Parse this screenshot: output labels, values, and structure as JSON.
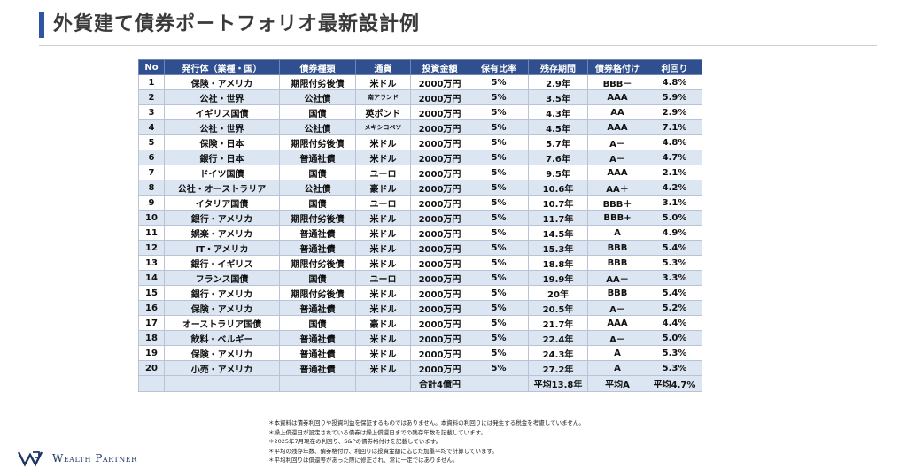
{
  "title": "外貨建て債券ポートフォリオ最新設計例",
  "table": {
    "headers": [
      "No",
      "発行体（業種・国）",
      "債券種類",
      "通貨",
      "投資金額",
      "保有比率",
      "残存期間",
      "債券格付け",
      "利回り"
    ],
    "rows": [
      [
        "1",
        "保険・アメリカ",
        "期限付劣後債",
        "米ドル",
        "2000万円",
        "5%",
        "2.9年",
        "BBB－",
        "4.8%"
      ],
      [
        "2",
        "公社・世界",
        "公社債",
        "南アランド",
        "2000万円",
        "5%",
        "3.5年",
        "AAA",
        "5.9%"
      ],
      [
        "3",
        "イギリス国債",
        "国債",
        "英ポンド",
        "2000万円",
        "5%",
        "4.3年",
        "AA",
        "2.9%"
      ],
      [
        "4",
        "公社・世界",
        "公社債",
        "メキシコペソ",
        "2000万円",
        "5%",
        "4.5年",
        "AAA",
        "7.1%"
      ],
      [
        "5",
        "保険・日本",
        "期限付劣後債",
        "米ドル",
        "2000万円",
        "5%",
        "5.7年",
        "A－",
        "4.8%"
      ],
      [
        "6",
        "銀行・日本",
        "普通社債",
        "米ドル",
        "2000万円",
        "5%",
        "7.6年",
        "A－",
        "4.7%"
      ],
      [
        "7",
        "ドイツ国債",
        "国債",
        "ユーロ",
        "2000万円",
        "5%",
        "9.5年",
        "AAA",
        "2.1%"
      ],
      [
        "8",
        "公社・オーストラリア",
        "公社債",
        "豪ドル",
        "2000万円",
        "5%",
        "10.6年",
        "AA＋",
        "4.2%"
      ],
      [
        "9",
        "イタリア国債",
        "国債",
        "ユーロ",
        "2000万円",
        "5%",
        "10.7年",
        "BBB＋",
        "3.1%"
      ],
      [
        "10",
        "銀行・アメリカ",
        "期限付劣後債",
        "米ドル",
        "2000万円",
        "5%",
        "11.7年",
        "BBB+",
        "5.0%"
      ],
      [
        "11",
        "娯楽・アメリカ",
        "普通社債",
        "米ドル",
        "2000万円",
        "5%",
        "14.5年",
        "A",
        "4.9%"
      ],
      [
        "12",
        "IT・アメリカ",
        "普通社債",
        "米ドル",
        "2000万円",
        "5%",
        "15.3年",
        "BBB",
        "5.4%"
      ],
      [
        "13",
        "銀行・イギリス",
        "期限付劣後債",
        "米ドル",
        "2000万円",
        "5%",
        "18.8年",
        "BBB",
        "5.3%"
      ],
      [
        "14",
        "フランス国債",
        "国債",
        "ユーロ",
        "2000万円",
        "5%",
        "19.9年",
        "AA－",
        "3.3%"
      ],
      [
        "15",
        "銀行・アメリカ",
        "期限付劣後債",
        "米ドル",
        "2000万円",
        "5%",
        "20年",
        "BBB",
        "5.4%"
      ],
      [
        "16",
        "保険・アメリカ",
        "普通社債",
        "米ドル",
        "2000万円",
        "5%",
        "20.5年",
        "A－",
        "5.2%"
      ],
      [
        "17",
        "オーストラリア国債",
        "国債",
        "豪ドル",
        "2000万円",
        "5%",
        "21.7年",
        "AAA",
        "4.4%"
      ],
      [
        "18",
        "飲料・ベルギー",
        "普通社債",
        "米ドル",
        "2000万円",
        "5%",
        "22.4年",
        "A－",
        "5.0%"
      ],
      [
        "19",
        "保険・アメリカ",
        "普通社債",
        "米ドル",
        "2000万円",
        "5%",
        "24.3年",
        "A",
        "5.3%"
      ],
      [
        "20",
        "小売・アメリカ",
        "普通社債",
        "米ドル",
        "2000万円",
        "5%",
        "27.2年",
        "A",
        "5.3%"
      ]
    ],
    "footer": {
      "total": "合計4億円",
      "avg_term": "平均13.8年",
      "avg_rating": "平均A",
      "avg_yield": "平均4.7%"
    }
  },
  "notes": [
    "＊本資料は債券利回りや投資利益を保証するものではありません。本資料の利回りには発生する税金を考慮していません。",
    "＊繰上償還日が設定されている債券は繰上償還日までの残存年数を記載しています。",
    "＊2025年7月現在の利回り、S&Pの債券格付けを記載しています。",
    "＊平均の残存年数、債券格付け、利回りは投資金額に応じた加重平均で計算しています。",
    "＊平均利回りは償還等があった際に修正され、常に一定ではありません。"
  ],
  "logo": {
    "text": "Wealth Partner",
    "icon": "wp-logo-icon"
  },
  "colors": {
    "accent": "#2e55a1",
    "header_bg": "#2f4f8e",
    "stripe": "#dce6f2"
  }
}
